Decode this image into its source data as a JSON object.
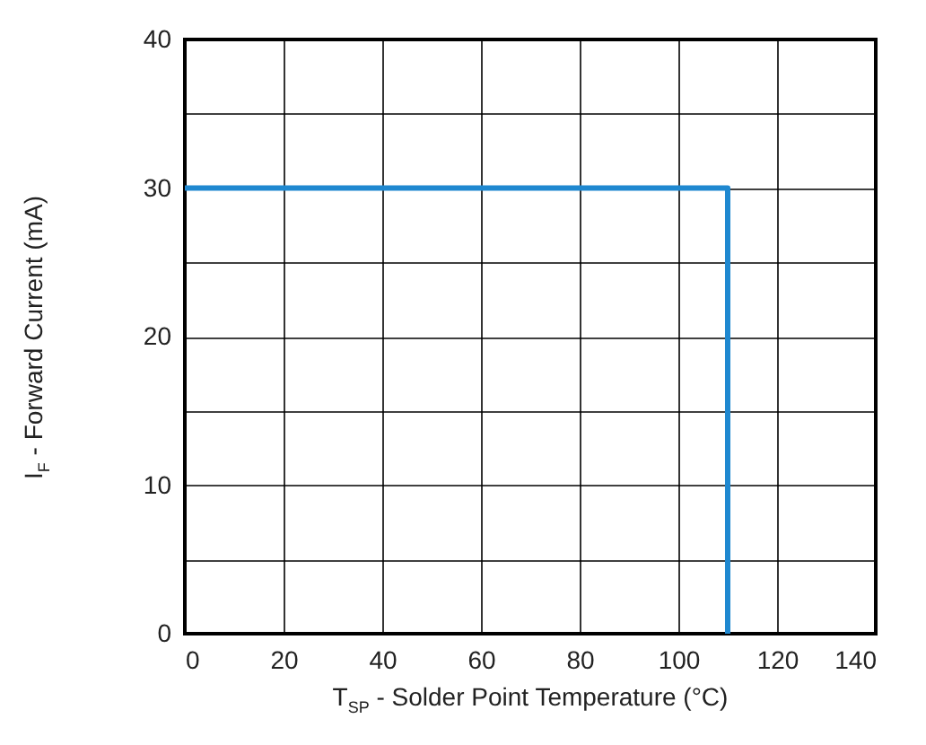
{
  "chart_data": {
    "type": "step",
    "xlabel": "T$_{SP}$ - Solder Point Temperature (°C)",
    "ylabel": "I$_{F}$ - Forward Current (mA)",
    "series": [
      {
        "color": "#1f88d0",
        "x": [
          0,
          110
        ],
        "values": [
          30,
          0
        ]
      }
    ],
    "xlim": [
      0,
      140
    ],
    "xticks": [
      0,
      20,
      40,
      60,
      80,
      100,
      120,
      140
    ],
    "ylim": [
      0,
      40
    ],
    "yticks": [
      0,
      {
        "value": 5,
        "label": null
      },
      10,
      {
        "value": 15,
        "label": null
      },
      20,
      {
        "value": 25,
        "label": null
      },
      30,
      {
        "value": 35,
        "label": null
      },
      40
    ],
    "grid": true,
    "line_style": "solid"
  }
}
